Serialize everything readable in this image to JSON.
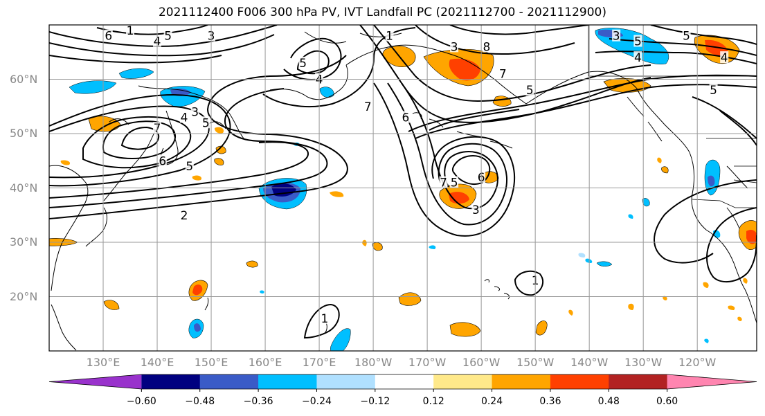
{
  "title": "2021112400 F006 300 hPa PV, IVT Landfall PC (2021112700 - 2021112900)",
  "lat_labels": [
    "60°N",
    "50°N",
    "40°N",
    "30°N",
    "20°N"
  ],
  "lat_values": [
    60,
    50,
    40,
    30,
    20
  ],
  "lon_labels": [
    "130°E",
    "140°E",
    "150°E",
    "160°E",
    "170°E",
    "180°W",
    "170°W",
    "160°W",
    "150°W",
    "140°W",
    "130°W",
    "120°W"
  ],
  "lon_values": [
    130,
    140,
    150,
    160,
    170,
    180,
    190,
    200,
    210,
    220,
    230,
    240
  ],
  "map_extent": {
    "lon_min": 120,
    "lon_max": 251,
    "lat_min": 10,
    "lat_max": 70
  },
  "colorbar": {
    "ticks": [
      "−0.60",
      "−0.48",
      "−0.36",
      "−0.24",
      "−0.12",
      "0.12",
      "0.24",
      "0.36",
      "0.48",
      "0.60"
    ],
    "colors": [
      "#9932cc",
      "#000080",
      "#3a5bc7",
      "#00bfff",
      "#b0e0ff",
      "#ffffff",
      "#ffe98a",
      "#ffa500",
      "#ff4000",
      "#b22222",
      "#ff85b0"
    ]
  },
  "contour_labels": [
    {
      "text": "6",
      "lon": 131,
      "lat": 68
    },
    {
      "text": "1",
      "lon": 135,
      "lat": 69
    },
    {
      "text": "4",
      "lon": 140,
      "lat": 67
    },
    {
      "text": "5",
      "lon": 142,
      "lat": 68
    },
    {
      "text": "3",
      "lon": 150,
      "lat": 68
    },
    {
      "text": "1",
      "lon": 183,
      "lat": 68
    },
    {
      "text": "3",
      "lon": 195,
      "lat": 66
    },
    {
      "text": "8",
      "lon": 201,
      "lat": 66
    },
    {
      "text": "5",
      "lon": 167,
      "lat": 63
    },
    {
      "text": "4",
      "lon": 170,
      "lat": 60
    },
    {
      "text": "7",
      "lon": 204,
      "lat": 61
    },
    {
      "text": "5",
      "lon": 209,
      "lat": 58
    },
    {
      "text": "4",
      "lon": 145,
      "lat": 53
    },
    {
      "text": "3",
      "lon": 147,
      "lat": 54
    },
    {
      "text": "5",
      "lon": 149,
      "lat": 52
    },
    {
      "text": "7",
      "lon": 140,
      "lat": 51
    },
    {
      "text": "7",
      "lon": 179,
      "lat": 55
    },
    {
      "text": "6",
      "lon": 186,
      "lat": 53
    },
    {
      "text": "5",
      "lon": 146,
      "lat": 44
    },
    {
      "text": "6",
      "lon": 141,
      "lat": 45
    },
    {
      "text": "7",
      "lon": 193,
      "lat": 41
    },
    {
      "text": "5",
      "lon": 195,
      "lat": 41
    },
    {
      "text": "6",
      "lon": 200,
      "lat": 42
    },
    {
      "text": "3",
      "lon": 199,
      "lat": 36
    },
    {
      "text": "2",
      "lon": 145,
      "lat": 35
    },
    {
      "text": "5",
      "lon": 229,
      "lat": 67
    },
    {
      "text": "3",
      "lon": 225,
      "lat": 68
    },
    {
      "text": "4",
      "lon": 229,
      "lat": 64
    },
    {
      "text": "5",
      "lon": 238,
      "lat": 68
    },
    {
      "text": "4",
      "lon": 245,
      "lat": 64
    },
    {
      "text": "5",
      "lon": 243,
      "lat": 58
    },
    {
      "text": "1",
      "lon": 210,
      "lat": 23
    },
    {
      "text": "1",
      "lon": 171,
      "lat": 16
    }
  ]
}
